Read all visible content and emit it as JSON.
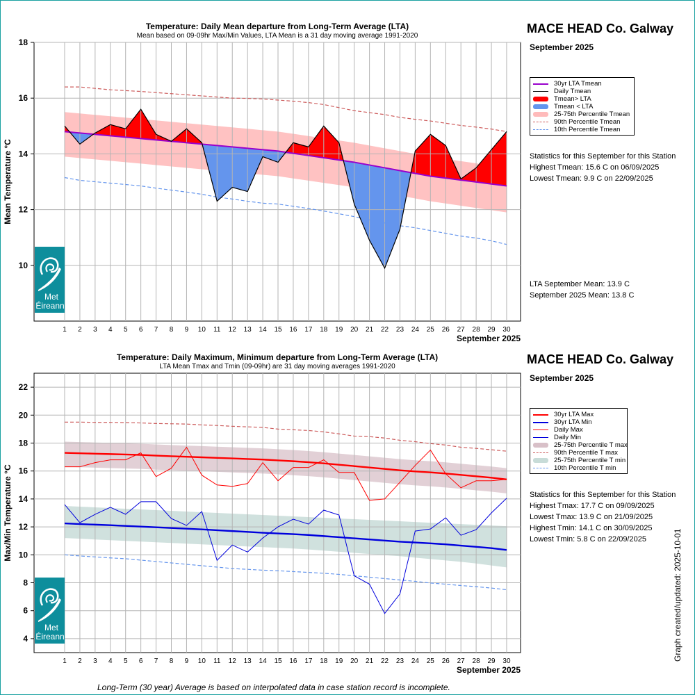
{
  "top_panel": {
    "station": "MACE HEAD Co. Galway",
    "month": "September 2025",
    "legend": [
      {
        "label": "30yr LTA Tmean",
        "style": "line",
        "color": "#9900cc",
        "weight": "thick"
      },
      {
        "label": "Daily Tmean",
        "style": "line",
        "color": "#000000",
        "weight": "thin"
      },
      {
        "label": "Tmean> LTA",
        "style": "fill",
        "color": "#ff0000"
      },
      {
        "label": "Tmean < LTA",
        "style": "fill",
        "color": "#6495ed"
      },
      {
        "label": "25-75th Percentile Tmean",
        "style": "fill",
        "color": "#ffbbbb"
      },
      {
        "label": "90th Percentile Tmean",
        "style": "dash",
        "color": "#cd5c5c"
      },
      {
        "label": "10th Percentile Tmean",
        "style": "dash",
        "color": "#6495ed"
      }
    ],
    "stats": {
      "heading": "Statistics for this September for this Station",
      "highest": "Highest Tmean: 15.6 C on 06/09/2025",
      "lowest": "Lowest Tmean: 9.9 C on 22/09/2025",
      "lta_mean": "LTA September Mean: 13.9 C",
      "month_mean": "September 2025 Mean: 13.8 C"
    }
  },
  "bottom_panel": {
    "station": "MACE HEAD Co. Galway",
    "month": "September 2025",
    "legend": [
      {
        "label": "30yr LTA Max",
        "style": "line",
        "color": "#ff0000",
        "weight": "thick"
      },
      {
        "label": "30yr LTA Min",
        "style": "line",
        "color": "#0000dd",
        "weight": "thick"
      },
      {
        "label": "Daily Max",
        "style": "line",
        "color": "#ff0000",
        "weight": "thin"
      },
      {
        "label": "Daily Min",
        "style": "line",
        "color": "#0000dd",
        "weight": "thin"
      },
      {
        "label": "25-75th Percentile T max",
        "style": "fill",
        "color": "#d8c0c8"
      },
      {
        "label": "90th Percentile T max",
        "style": "dash",
        "color": "#cd5c5c"
      },
      {
        "label": "25-75th Percentile T min",
        "style": "fill",
        "color": "#c8dcd8"
      },
      {
        "label": "10th Percentile T min",
        "style": "dash",
        "color": "#6495ed"
      }
    ],
    "stats": {
      "heading": "Statistics for this September for this Station",
      "highest_max": "Highest Tmax: 17.7 C on 09/09/2025",
      "lowest_max": "Lowest Tmax: 13.9 C on 21/09/2025",
      "highest_min": "Highest Tmin: 14.1 C on 30/09/2025",
      "lowest_min": "Lowest Tmin: 5.8 C on 22/09/2025"
    }
  },
  "logo": {
    "text_line1": "Met",
    "text_line2": "Éireann"
  },
  "footnote": "Long-Term (30 year) Average is based on interpolated data in case station record is incomplete.",
  "updated": "Graph created/updated:  2025-10-01",
  "chart_data": [
    {
      "type": "line",
      "title": "Temperature: Daily Mean departure from Long-Term Average (LTA)",
      "subtitle": "Mean based on 09-09hr Max/Min Values, LTA Mean is a 31 day moving average 1991-2020",
      "xlabel": "September 2025",
      "ylabel": "Mean Temperature °C",
      "ylim": [
        8,
        18
      ],
      "yticks": [
        10,
        12,
        14,
        16,
        18
      ],
      "x": [
        1,
        2,
        3,
        4,
        5,
        6,
        7,
        8,
        9,
        10,
        11,
        12,
        13,
        14,
        15,
        16,
        17,
        18,
        19,
        20,
        21,
        22,
        23,
        24,
        25,
        26,
        27,
        28,
        29,
        30
      ],
      "series": [
        {
          "name": "Daily Tmean",
          "values": [
            15.0,
            14.35,
            14.75,
            15.05,
            14.9,
            15.6,
            14.7,
            14.45,
            14.9,
            14.4,
            12.3,
            12.8,
            12.65,
            13.9,
            13.7,
            14.4,
            14.25,
            15.0,
            14.4,
            12.2,
            10.9,
            9.9,
            11.3,
            14.1,
            14.7,
            14.3,
            13.1,
            13.5,
            14.15,
            14.8
          ]
        },
        {
          "name": "30yr LTA Tmean",
          "values": [
            14.8,
            14.75,
            14.7,
            14.65,
            14.6,
            14.55,
            14.5,
            14.45,
            14.4,
            14.35,
            14.3,
            14.25,
            14.2,
            14.15,
            14.1,
            14.02,
            13.94,
            13.86,
            13.78,
            13.7,
            13.6,
            13.5,
            13.4,
            13.3,
            13.2,
            13.13,
            13.06,
            12.99,
            12.92,
            12.85
          ]
        },
        {
          "name": "25th Percentile Tmean",
          "values": [
            13.9,
            13.85,
            13.8,
            13.75,
            13.7,
            13.65,
            13.6,
            13.55,
            13.5,
            13.45,
            13.4,
            13.35,
            13.3,
            13.25,
            13.2,
            13.12,
            13.04,
            12.96,
            12.88,
            12.8,
            12.7,
            12.6,
            12.5,
            12.4,
            12.3,
            12.22,
            12.14,
            12.06,
            11.98,
            11.9
          ]
        },
        {
          "name": "75th Percentile Tmean",
          "values": [
            15.5,
            15.45,
            15.4,
            15.35,
            15.3,
            15.25,
            15.2,
            15.15,
            15.1,
            15.05,
            15.0,
            14.95,
            14.9,
            14.85,
            14.8,
            14.72,
            14.64,
            14.56,
            14.48,
            14.4,
            14.3,
            14.2,
            14.1,
            14.0,
            13.9,
            13.82,
            13.74,
            13.66,
            13.58,
            13.5
          ]
        },
        {
          "name": "90th Percentile Tmean",
          "values": [
            16.4,
            16.4,
            16.35,
            16.3,
            16.27,
            16.24,
            16.2,
            16.16,
            16.12,
            16.08,
            16.04,
            16.0,
            15.99,
            15.97,
            15.93,
            15.89,
            15.84,
            15.77,
            15.66,
            15.55,
            15.48,
            15.41,
            15.31,
            15.24,
            15.18,
            15.1,
            15.02,
            14.96,
            14.89,
            14.8
          ]
        },
        {
          "name": "10th Percentile Tmean",
          "values": [
            13.15,
            13.05,
            13.0,
            12.95,
            12.9,
            12.85,
            12.77,
            12.7,
            12.63,
            12.55,
            12.45,
            12.38,
            12.3,
            12.23,
            12.2,
            12.12,
            12.04,
            11.95,
            11.85,
            11.75,
            11.63,
            11.52,
            11.42,
            11.35,
            11.25,
            11.15,
            11.05,
            10.98,
            10.88,
            10.75
          ]
        }
      ]
    },
    {
      "type": "line",
      "title": "Temperature: Daily Maximum, Minimum departure from Long-Term Average (LTA)",
      "subtitle": "LTA Mean Tmax and Tmin (09-09hr) are 31 day moving averages 1991-2020",
      "xlabel": "September 2025",
      "ylabel": "Max/Min Temperature °C",
      "ylim": [
        3,
        23
      ],
      "yticks": [
        4,
        6,
        8,
        10,
        12,
        14,
        16,
        18,
        20,
        22
      ],
      "x": [
        1,
        2,
        3,
        4,
        5,
        6,
        7,
        8,
        9,
        10,
        11,
        12,
        13,
        14,
        15,
        16,
        17,
        18,
        19,
        20,
        21,
        22,
        23,
        24,
        25,
        26,
        27,
        28,
        29,
        30
      ],
      "series": [
        {
          "name": "Daily Max",
          "values": [
            16.3,
            16.3,
            16.6,
            16.8,
            16.8,
            17.3,
            15.6,
            16.2,
            17.7,
            15.7,
            15.0,
            14.9,
            15.1,
            16.6,
            15.3,
            16.25,
            16.25,
            16.8,
            15.9,
            15.9,
            13.9,
            14.0,
            15.2,
            16.4,
            17.5,
            15.8,
            14.8,
            15.3,
            15.3,
            15.4
          ]
        },
        {
          "name": "Daily Min",
          "values": [
            13.6,
            12.3,
            12.9,
            13.4,
            12.9,
            13.8,
            13.8,
            12.6,
            12.1,
            13.1,
            9.6,
            10.7,
            10.2,
            11.2,
            12.0,
            12.55,
            12.2,
            13.2,
            12.85,
            8.5,
            7.9,
            5.8,
            7.2,
            11.7,
            11.85,
            12.65,
            11.4,
            11.8,
            13.0,
            14.05
          ]
        },
        {
          "name": "30yr LTA Max",
          "values": [
            17.3,
            17.27,
            17.24,
            17.21,
            17.18,
            17.15,
            17.1,
            17.06,
            17.02,
            16.98,
            16.94,
            16.9,
            16.86,
            16.82,
            16.76,
            16.7,
            16.63,
            16.55,
            16.45,
            16.35,
            16.25,
            16.15,
            16.05,
            15.97,
            15.9,
            15.82,
            15.72,
            15.62,
            15.52,
            15.4
          ]
        },
        {
          "name": "30yr LTA Min",
          "values": [
            12.25,
            12.2,
            12.16,
            12.12,
            12.07,
            12.02,
            11.97,
            11.92,
            11.87,
            11.82,
            11.76,
            11.7,
            11.64,
            11.58,
            11.53,
            11.48,
            11.42,
            11.34,
            11.26,
            11.18,
            11.1,
            11.02,
            10.94,
            10.88,
            10.82,
            10.75,
            10.66,
            10.57,
            10.48,
            10.35
          ]
        },
        {
          "name": "25th Percentile T max",
          "values": [
            16.3,
            16.27,
            16.24,
            16.21,
            16.18,
            16.15,
            16.1,
            16.06,
            16.02,
            15.98,
            15.94,
            15.9,
            15.86,
            15.82,
            15.76,
            15.7,
            15.63,
            15.55,
            15.45,
            15.35,
            15.25,
            15.15,
            15.05,
            14.97,
            14.9,
            14.82,
            14.72,
            14.62,
            14.52,
            14.4
          ]
        },
        {
          "name": "75th Percentile T max",
          "values": [
            18.1,
            18.07,
            18.04,
            18.01,
            17.98,
            17.95,
            17.9,
            17.86,
            17.82,
            17.78,
            17.74,
            17.7,
            17.66,
            17.62,
            17.56,
            17.5,
            17.43,
            17.35,
            17.25,
            17.15,
            17.05,
            16.95,
            16.85,
            16.77,
            16.7,
            16.62,
            16.52,
            16.42,
            16.32,
            16.2
          ]
        },
        {
          "name": "25th Percentile T min",
          "values": [
            11.2,
            11.15,
            11.1,
            11.05,
            11.0,
            10.95,
            10.9,
            10.85,
            10.8,
            10.75,
            10.7,
            10.65,
            10.6,
            10.55,
            10.5,
            10.45,
            10.38,
            10.3,
            10.22,
            10.14,
            10.06,
            9.98,
            9.9,
            9.8,
            9.7,
            9.6,
            9.5,
            9.38,
            9.24,
            9.1
          ]
        },
        {
          "name": "75th Percentile T min",
          "values": [
            13.5,
            13.45,
            13.4,
            13.35,
            13.3,
            13.25,
            13.2,
            13.15,
            13.1,
            13.05,
            13.0,
            12.95,
            12.9,
            12.85,
            12.8,
            12.75,
            12.7,
            12.65,
            12.6,
            12.55,
            12.5,
            12.45,
            12.4,
            12.35,
            12.3,
            12.25,
            12.2,
            12.15,
            12.1,
            12.05
          ]
        },
        {
          "name": "90th Percentile T max",
          "values": [
            19.5,
            19.5,
            19.48,
            19.48,
            19.46,
            19.44,
            19.4,
            19.38,
            19.36,
            19.3,
            19.26,
            19.2,
            19.16,
            19.12,
            19.0,
            18.95,
            18.9,
            18.8,
            18.66,
            18.5,
            18.46,
            18.36,
            18.2,
            18.1,
            17.96,
            17.86,
            17.7,
            17.62,
            17.52,
            17.42
          ]
        },
        {
          "name": "10th Percentile T min",
          "values": [
            10.0,
            9.92,
            9.85,
            9.78,
            9.72,
            9.62,
            9.52,
            9.42,
            9.32,
            9.22,
            9.12,
            9.02,
            8.96,
            8.9,
            8.86,
            8.8,
            8.74,
            8.68,
            8.6,
            8.5,
            8.4,
            8.3,
            8.2,
            8.1,
            7.98,
            7.9,
            7.8,
            7.72,
            7.62,
            7.5
          ]
        }
      ]
    }
  ]
}
